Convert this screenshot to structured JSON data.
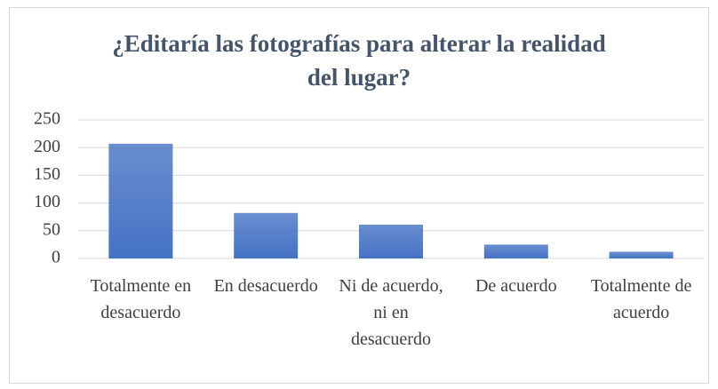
{
  "chart_data": {
    "type": "bar",
    "title": "¿Editaría las fotografías para alterar la realidad del lugar?",
    "categories": [
      "Totalmente en desacuerdo",
      "En desacuerdo",
      "Ni de acuerdo, ni en desacuerdo",
      "De acuerdo",
      "Totalmente de acuerdo"
    ],
    "values": [
      207,
      82,
      61,
      25,
      12
    ],
    "color": "#4472c4",
    "ylim": [
      0,
      250
    ],
    "yticks": [
      0,
      50,
      100,
      150,
      200,
      250
    ],
    "grid": true
  }
}
